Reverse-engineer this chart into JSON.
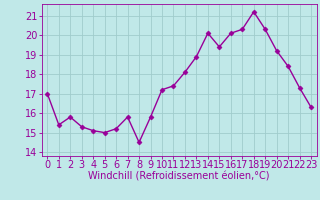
{
  "x": [
    0,
    1,
    2,
    3,
    4,
    5,
    6,
    7,
    8,
    9,
    10,
    11,
    12,
    13,
    14,
    15,
    16,
    17,
    18,
    19,
    20,
    21,
    22,
    23
  ],
  "y": [
    17.0,
    15.4,
    15.8,
    15.3,
    15.1,
    15.0,
    15.2,
    15.8,
    14.5,
    15.8,
    17.2,
    17.4,
    18.1,
    18.9,
    20.1,
    19.4,
    20.1,
    20.3,
    21.2,
    20.3,
    19.2,
    18.4,
    17.3,
    16.3
  ],
  "line_color": "#990099",
  "marker": "D",
  "marker_size": 2.5,
  "bg_color": "#c0e8e8",
  "grid_color": "#a0cccc",
  "xlabel": "Windchill (Refroidissement éolien,°C)",
  "ylabel": "",
  "ylim": [
    13.8,
    21.6
  ],
  "xlim": [
    -0.5,
    23.5
  ],
  "yticks": [
    14,
    15,
    16,
    17,
    18,
    19,
    20,
    21
  ],
  "xticks": [
    0,
    1,
    2,
    3,
    4,
    5,
    6,
    7,
    8,
    9,
    10,
    11,
    12,
    13,
    14,
    15,
    16,
    17,
    18,
    19,
    20,
    21,
    22,
    23
  ],
  "tick_color": "#990099",
  "label_color": "#990099",
  "axis_color": "#990099",
  "font_size_xlabel": 7,
  "font_size_ticks": 7,
  "linewidth": 1.0
}
